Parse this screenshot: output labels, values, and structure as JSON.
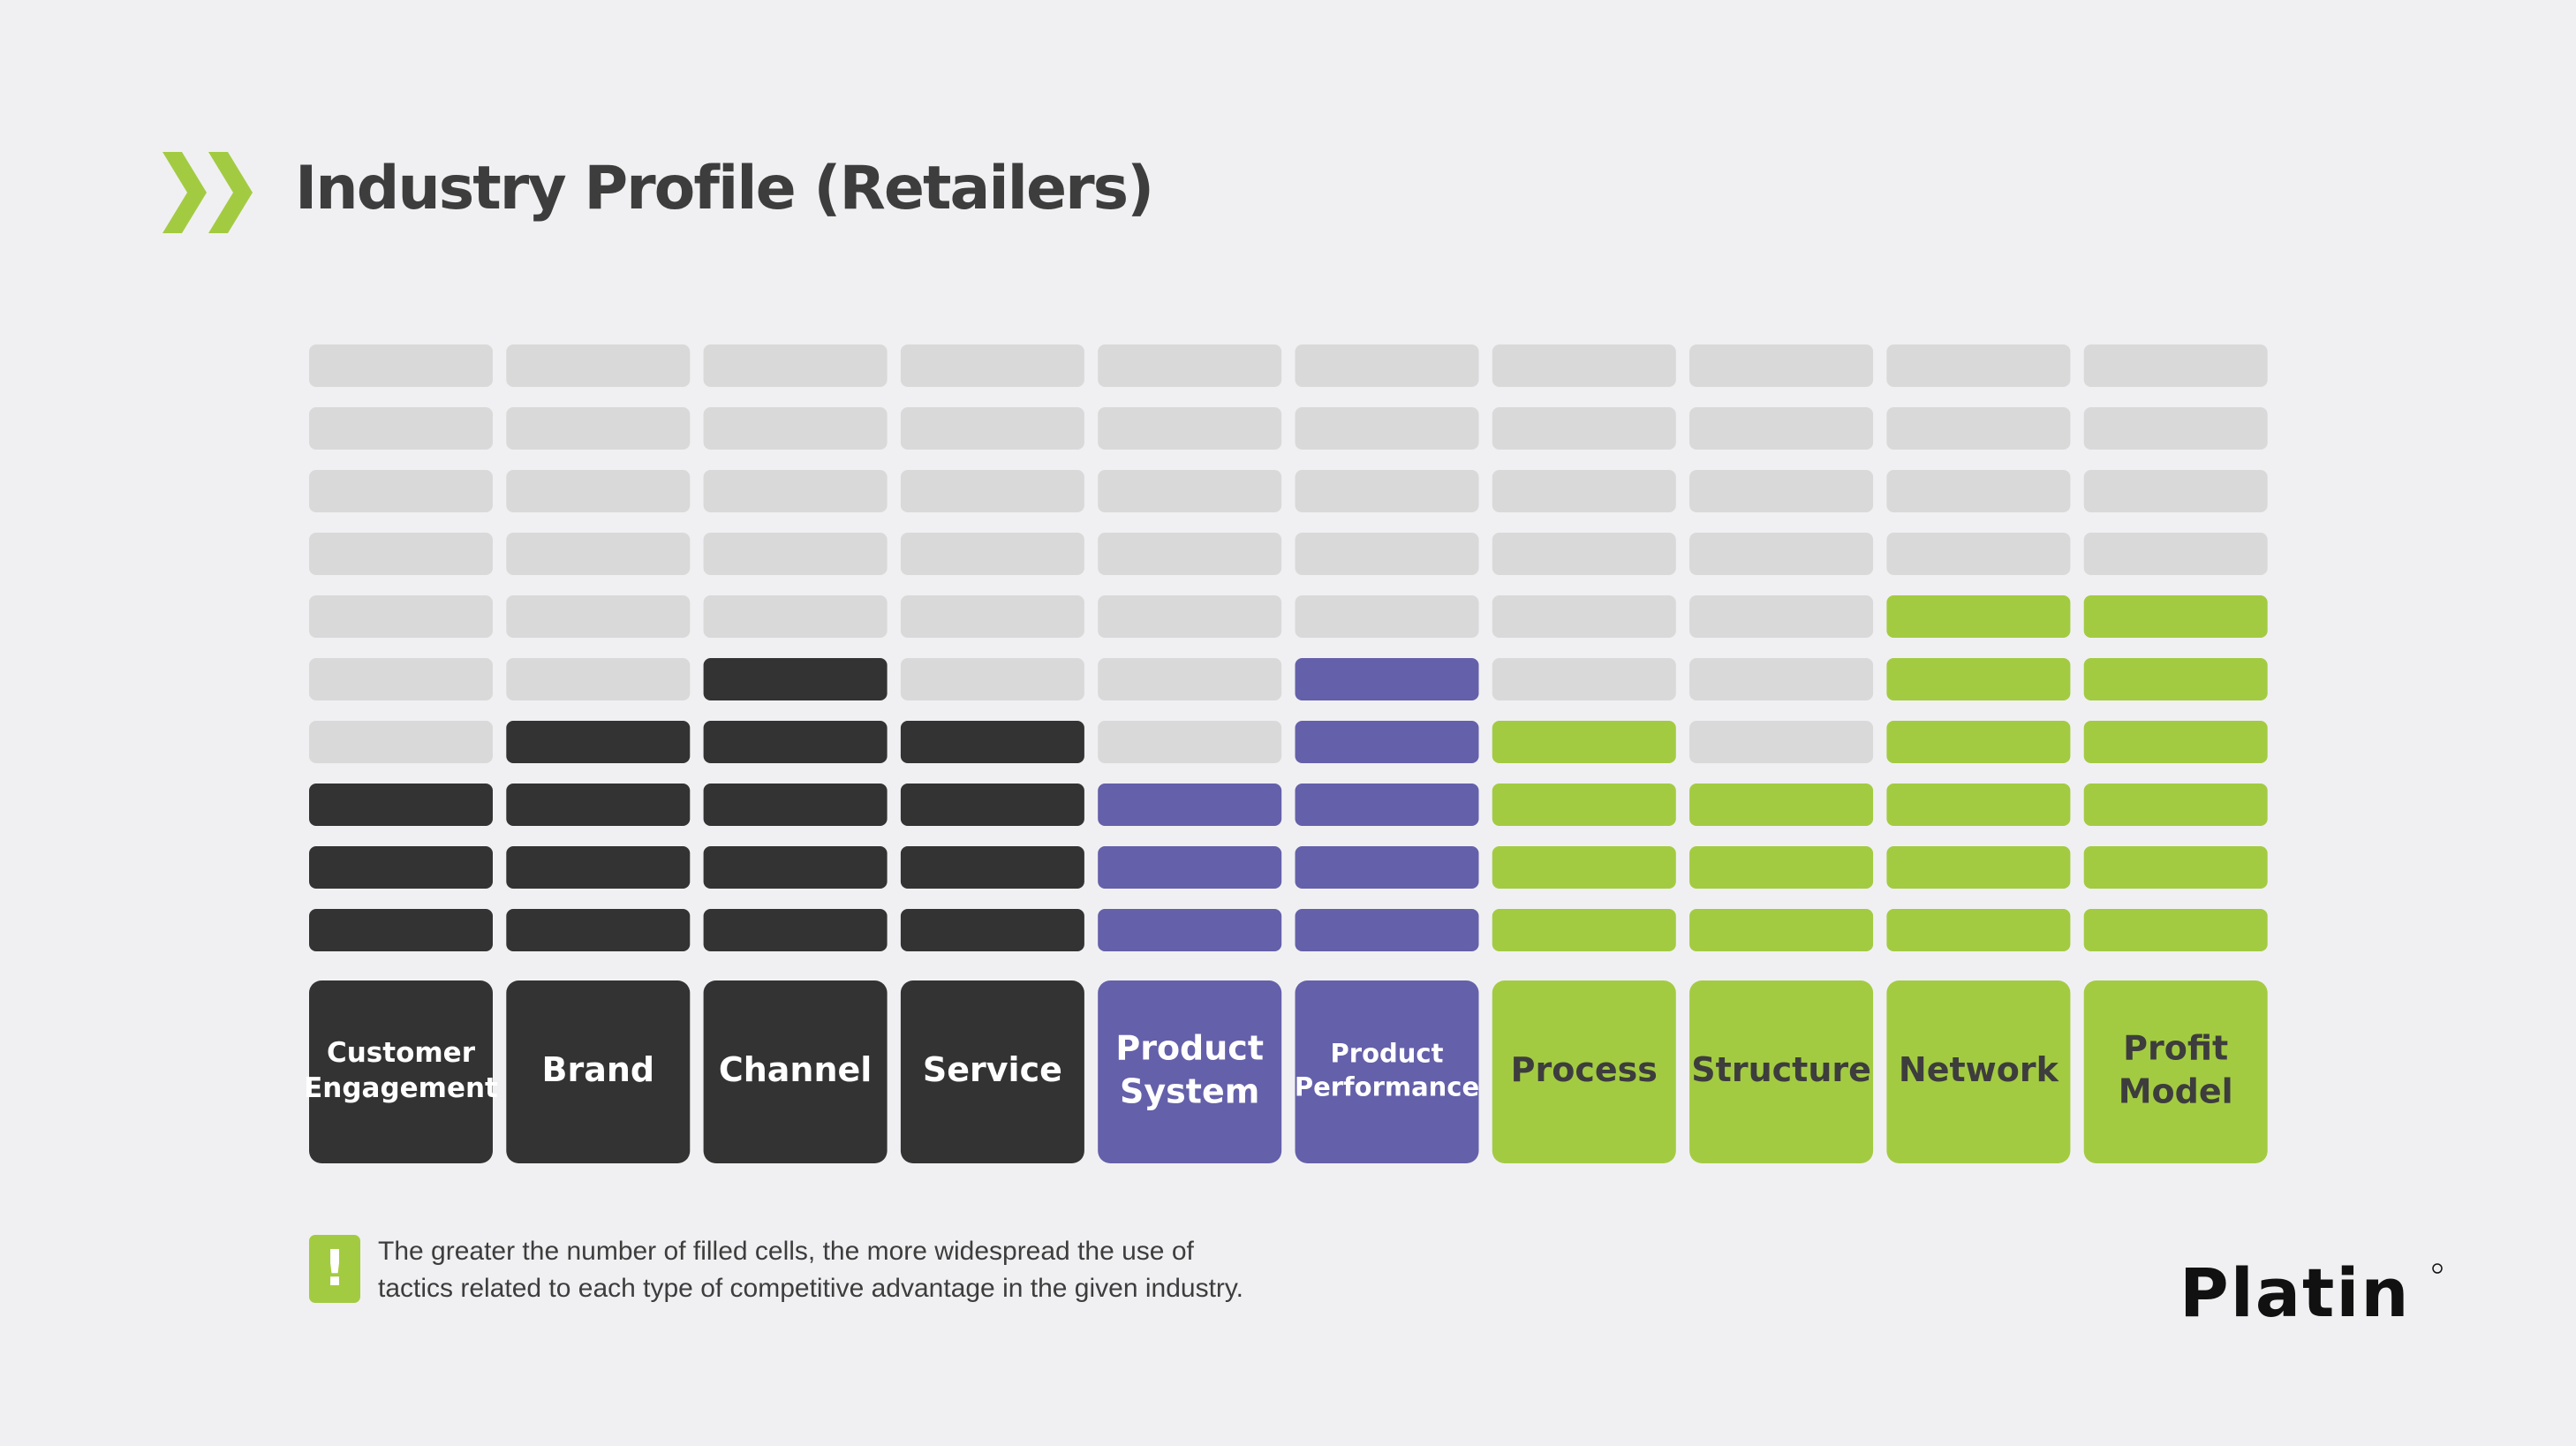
{
  "page": {
    "title": "Industry Profile (Retailers)",
    "note_icon": "!",
    "note": "The greater the number of filled cells, the more widespread the use of tactics related to each type of competitive advantage in the given industry.",
    "logo": "Platin"
  },
  "colors": {
    "background": "#f0f0f2",
    "empty_cell": "#d9d9d9",
    "dark": "#333333",
    "purple": "#6460aa",
    "green": "#a3cb42",
    "title": "#3d3d3d"
  },
  "chart_data": {
    "type": "bar",
    "max_cells": 10,
    "categories": [
      "Customer Engagement",
      "Brand",
      "Channel",
      "Service",
      "Product System",
      "Product Performance",
      "Process",
      "Structure",
      "Network",
      "Profit Model"
    ],
    "category_lines": [
      [
        "Customer",
        "Engagement"
      ],
      [
        "Brand"
      ],
      [
        "Channel"
      ],
      [
        "Service"
      ],
      [
        "Product",
        "System"
      ],
      [
        "Product",
        "Performance"
      ],
      [
        "Process"
      ],
      [
        "Structure"
      ],
      [
        "Network"
      ],
      [
        "Profit",
        "Model"
      ]
    ],
    "values": [
      3,
      4,
      5,
      4,
      3,
      5,
      4,
      3,
      6,
      6
    ],
    "groups": [
      "dark",
      "dark",
      "dark",
      "dark",
      "purple",
      "purple",
      "green",
      "green",
      "green",
      "green"
    ],
    "title": "",
    "xlabel": "",
    "ylabel": "",
    "ylim": [
      0,
      10
    ],
    "grid": false,
    "legend": "none"
  }
}
